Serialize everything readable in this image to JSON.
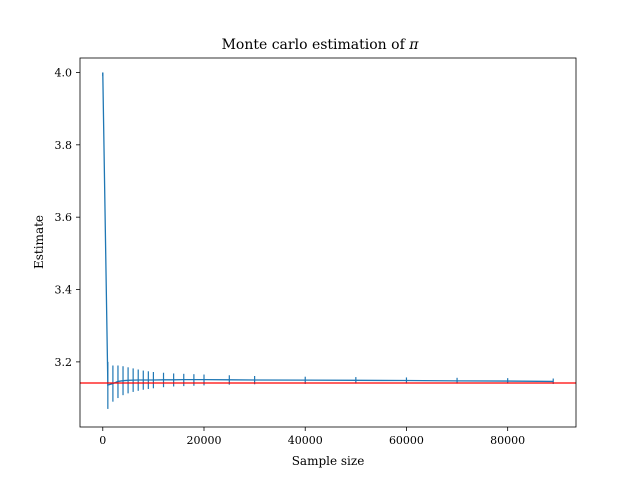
{
  "chart_data": {
    "type": "line",
    "title": "Monte carlo estimation of",
    "title_symbol": "π",
    "xlabel": "Sample size",
    "ylabel": "Estimate",
    "xlim": [
      -4500,
      93500
    ],
    "ylim": [
      3.02,
      4.04
    ],
    "x_ticks": [
      0,
      20000,
      40000,
      60000,
      80000
    ],
    "x_tick_labels": [
      "0",
      "20000",
      "40000",
      "60000",
      "80000"
    ],
    "y_ticks": [
      3.2,
      3.4,
      3.6,
      3.8,
      4.0
    ],
    "y_tick_labels": [
      "3.2",
      "3.4",
      "3.6",
      "3.8",
      "4.0"
    ],
    "grid": false,
    "reference_line": {
      "value": 3.14159,
      "color": "#ff0000"
    },
    "series": [
      {
        "color": "#1f77b4",
        "x": [
          1,
          1001,
          2001,
          3001,
          4001,
          5001,
          6001,
          7001,
          8001,
          9001,
          10001,
          12001,
          14001,
          16001,
          18001,
          20001,
          25001,
          30001,
          40001,
          50001,
          60001,
          70001,
          80001,
          89001
        ],
        "y": [
          4.0,
          3.136,
          3.14,
          3.146,
          3.148,
          3.149,
          3.1495,
          3.15,
          3.15,
          3.15,
          3.15,
          3.1505,
          3.1505,
          3.151,
          3.151,
          3.151,
          3.1505,
          3.15,
          3.1495,
          3.149,
          3.1485,
          3.1475,
          3.147,
          3.146
        ],
        "error_points": [
          {
            "x": 1,
            "upper": 4.0,
            "lower": 3.99
          },
          {
            "x": 1001,
            "upper": 3.2,
            "lower": 3.07
          },
          {
            "x": 2001,
            "upper": 3.19,
            "lower": 3.09
          },
          {
            "x": 3001,
            "upper": 3.19,
            "lower": 3.1
          },
          {
            "x": 4001,
            "upper": 3.188,
            "lower": 3.108
          },
          {
            "x": 5001,
            "upper": 3.185,
            "lower": 3.113
          },
          {
            "x": 6001,
            "upper": 3.182,
            "lower": 3.117
          },
          {
            "x": 7001,
            "upper": 3.179,
            "lower": 3.12
          },
          {
            "x": 8001,
            "upper": 3.176,
            "lower": 3.123
          },
          {
            "x": 9001,
            "upper": 3.174,
            "lower": 3.125
          },
          {
            "x": 10001,
            "upper": 3.172,
            "lower": 3.127
          },
          {
            "x": 12001,
            "upper": 3.17,
            "lower": 3.13
          },
          {
            "x": 14001,
            "upper": 3.168,
            "lower": 3.132
          },
          {
            "x": 16001,
            "upper": 3.167,
            "lower": 3.133
          },
          {
            "x": 18001,
            "upper": 3.166,
            "lower": 3.134
          },
          {
            "x": 20001,
            "upper": 3.165,
            "lower": 3.135
          },
          {
            "x": 25001,
            "upper": 3.163,
            "lower": 3.137
          },
          {
            "x": 30001,
            "upper": 3.161,
            "lower": 3.138
          },
          {
            "x": 40001,
            "upper": 3.159,
            "lower": 3.139
          },
          {
            "x": 50001,
            "upper": 3.158,
            "lower": 3.14
          },
          {
            "x": 60001,
            "upper": 3.157,
            "lower": 3.14
          },
          {
            "x": 70001,
            "upper": 3.156,
            "lower": 3.14
          },
          {
            "x": 80001,
            "upper": 3.155,
            "lower": 3.14
          },
          {
            "x": 89001,
            "upper": 3.154,
            "lower": 3.139
          }
        ]
      }
    ]
  }
}
